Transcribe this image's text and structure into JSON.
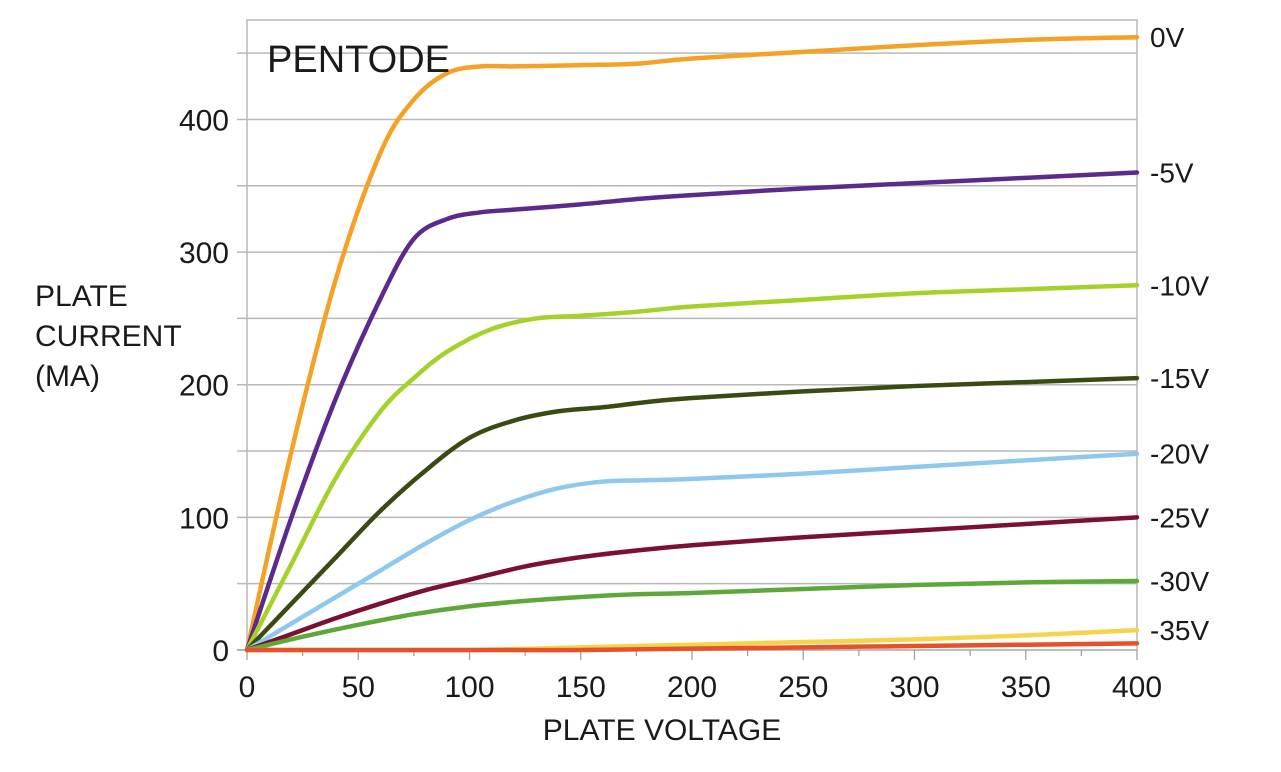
{
  "chart_data": {
    "type": "line",
    "title": "PENTODE",
    "xlabel": "PLATE VOLTAGE",
    "ylabel_lines": [
      "PLATE",
      "CURRENT",
      "(MA)"
    ],
    "xlim": [
      0,
      400
    ],
    "ylim": [
      0,
      475
    ],
    "x_ticks": [
      0,
      50,
      100,
      150,
      200,
      250,
      300,
      350,
      400
    ],
    "y_ticks": [
      0,
      100,
      200,
      300,
      400
    ],
    "gridlines_y": [
      50,
      100,
      150,
      200,
      250,
      300,
      350,
      400,
      450
    ],
    "grid": true,
    "series": [
      {
        "name": "0V",
        "color": "#f4a125",
        "x": [
          0,
          20,
          40,
          60,
          75,
          90,
          105,
          120,
          150,
          175,
          200,
          250,
          300,
          350,
          400
        ],
        "y": [
          0,
          150,
          280,
          375,
          415,
          435,
          440,
          440,
          441,
          442,
          446,
          451,
          456,
          460,
          462
        ]
      },
      {
        "name": "-5V",
        "color": "#5b2a8c",
        "x": [
          0,
          20,
          40,
          60,
          75,
          90,
          105,
          120,
          150,
          175,
          200,
          250,
          300,
          350,
          400
        ],
        "y": [
          0,
          100,
          190,
          265,
          310,
          325,
          330,
          332,
          336,
          340,
          343,
          348,
          352,
          356,
          360
        ]
      },
      {
        "name": "-10V",
        "color": "#a6d12b",
        "x": [
          0,
          20,
          40,
          60,
          75,
          90,
          110,
          130,
          150,
          175,
          200,
          250,
          300,
          350,
          400
        ],
        "y": [
          0,
          65,
          130,
          180,
          205,
          225,
          242,
          250,
          252,
          255,
          259,
          264,
          269,
          272,
          275
        ]
      },
      {
        "name": "-15V",
        "color": "#3b4a12",
        "x": [
          0,
          20,
          40,
          60,
          80,
          100,
          120,
          140,
          160,
          180,
          200,
          250,
          300,
          350,
          400
        ],
        "y": [
          0,
          35,
          70,
          105,
          135,
          160,
          173,
          180,
          183,
          187,
          190,
          195,
          199,
          202,
          205
        ]
      },
      {
        "name": "-20V",
        "color": "#8ec8ee",
        "x": [
          0,
          20,
          40,
          60,
          80,
          100,
          120,
          140,
          160,
          180,
          200,
          250,
          300,
          350,
          400
        ],
        "y": [
          0,
          20,
          40,
          60,
          80,
          98,
          112,
          122,
          127,
          128,
          129,
          133,
          138,
          143,
          148
        ]
      },
      {
        "name": "-25V",
        "color": "#7c1030",
        "x": [
          0,
          20,
          40,
          60,
          80,
          100,
          125,
          150,
          175,
          200,
          250,
          300,
          350,
          400
        ],
        "y": [
          0,
          12,
          24,
          35,
          45,
          53,
          63,
          70,
          75,
          79,
          85,
          90,
          95,
          100
        ]
      },
      {
        "name": "-30V",
        "color": "#5ea83a",
        "x": [
          0,
          25,
          50,
          75,
          100,
          125,
          150,
          175,
          200,
          250,
          300,
          350,
          400
        ],
        "y": [
          0,
          10,
          19,
          27,
          33,
          37,
          40,
          42,
          43,
          46,
          49,
          51,
          52
        ]
      },
      {
        "name": "-35V",
        "color": "#f5d44a",
        "x": [
          0,
          50,
          100,
          150,
          200,
          250,
          300,
          350,
          400
        ],
        "y": [
          0,
          0,
          0,
          2,
          4,
          6,
          8,
          11,
          15
        ]
      },
      {
        "name": "",
        "color": "#e8502a",
        "x": [
          0,
          100,
          150,
          200,
          250,
          300,
          350,
          400
        ],
        "y": [
          0,
          0,
          0,
          1,
          2,
          3,
          4,
          5
        ]
      }
    ]
  }
}
